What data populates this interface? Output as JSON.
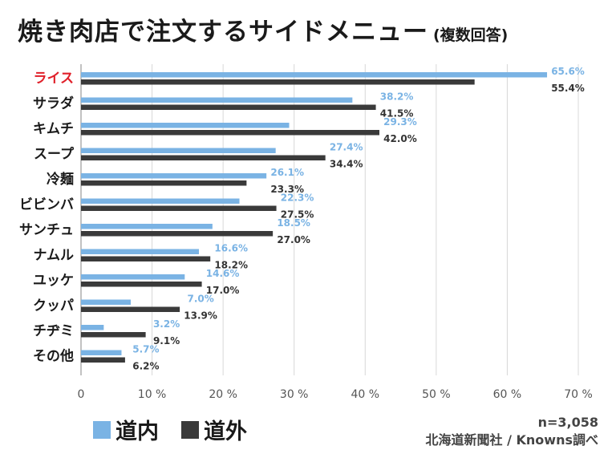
{
  "header": {
    "title": "焼き肉店で注文するサイドメニュー",
    "subtitle": "(複数回答)"
  },
  "legend": {
    "inside_label": "道内",
    "outside_label": "道外"
  },
  "footer": {
    "sample": "n=3,058",
    "source": "北海道新聞社 / Knowns調べ"
  },
  "colors": {
    "inside": "#7ab3e4",
    "outside": "#3a3a3a",
    "highlight": "#e0202a",
    "grid": "#d8d8d8"
  },
  "chart_data": {
    "type": "bar",
    "orientation": "horizontal",
    "title": "焼き肉店で注文するサイドメニュー",
    "categories": [
      "ライス",
      "サラダ",
      "キムチ",
      "スープ",
      "冷麺",
      "ビビンバ",
      "サンチュ",
      "ナムル",
      "ユッケ",
      "クッパ",
      "チヂミ",
      "その他"
    ],
    "highlight_category": "ライス",
    "series": [
      {
        "name": "道内",
        "values": [
          65.6,
          38.2,
          29.3,
          27.4,
          26.1,
          22.3,
          18.5,
          16.6,
          14.6,
          7.0,
          3.2,
          5.7
        ]
      },
      {
        "name": "道外",
        "values": [
          55.4,
          41.5,
          42.0,
          34.4,
          23.3,
          27.5,
          27.0,
          18.2,
          17.0,
          13.9,
          9.1,
          6.2
        ]
      }
    ],
    "xlim": [
      0,
      70
    ],
    "xticks": [
      0,
      10,
      20,
      30,
      40,
      50,
      60,
      70
    ],
    "xtick_labels": [
      "0",
      "10 %",
      "20 %",
      "30 %",
      "40 %",
      "50 %",
      "60 %",
      "70 %"
    ],
    "value_suffix": "%",
    "grid": true
  }
}
